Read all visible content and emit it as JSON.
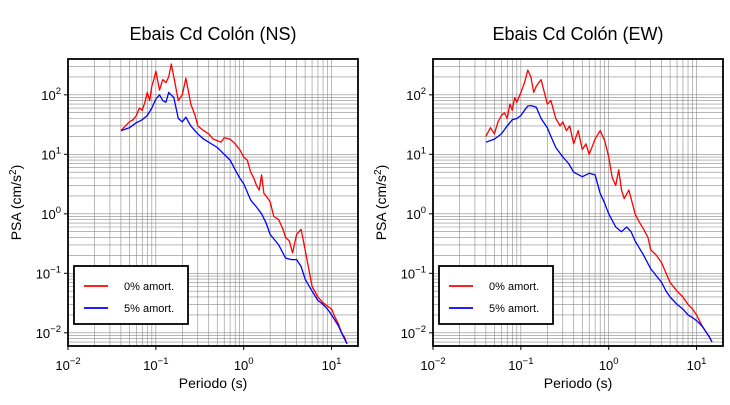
{
  "chart_data": [
    {
      "type": "line",
      "title": "Ebais Cd Colón (NS)",
      "xlabel": "Periodo (s)",
      "ylabel_parts": [
        "PSA (cm/s",
        "2",
        ")"
      ],
      "xscale": "log",
      "yscale": "log",
      "xlim": [
        0.01,
        20
      ],
      "ylim": [
        0.006,
        400
      ],
      "xticks": [
        {
          "value": 0.01,
          "base": "10",
          "exp": "−2"
        },
        {
          "value": 0.1,
          "base": "10",
          "exp": "−1"
        },
        {
          "value": 1,
          "base": "10",
          "exp": "0"
        },
        {
          "value": 10,
          "base": "10",
          "exp": "1"
        }
      ],
      "yticks": [
        {
          "value": 0.01,
          "base": "10",
          "exp": "−2"
        },
        {
          "value": 0.1,
          "base": "10",
          "exp": "−1"
        },
        {
          "value": 1,
          "base": "10",
          "exp": "0"
        },
        {
          "value": 10,
          "base": "10",
          "exp": "1"
        },
        {
          "value": 100,
          "base": "10",
          "exp": "2"
        }
      ],
      "grid": true,
      "legend_position": "bottom-left",
      "series": [
        {
          "name": "0% amort.",
          "color": "#ff0000",
          "x": [
            0.04,
            0.045,
            0.05,
            0.055,
            0.06,
            0.065,
            0.07,
            0.075,
            0.08,
            0.085,
            0.09,
            0.095,
            0.1,
            0.11,
            0.12,
            0.13,
            0.14,
            0.15,
            0.16,
            0.18,
            0.2,
            0.22,
            0.25,
            0.28,
            0.3,
            0.35,
            0.4,
            0.45,
            0.5,
            0.55,
            0.6,
            0.7,
            0.8,
            0.9,
            1.0,
            1.1,
            1.2,
            1.3,
            1.4,
            1.5,
            1.6,
            1.7,
            1.8,
            2.0,
            2.2,
            2.5,
            2.8,
            3.0,
            3.3,
            3.6,
            4.0,
            4.5,
            5.0,
            5.5,
            6.0,
            7.0,
            8.0,
            9.0,
            10,
            11,
            12,
            13,
            14,
            15
          ],
          "y": [
            25,
            30,
            35,
            38,
            45,
            60,
            55,
            75,
            110,
            80,
            140,
            180,
            250,
            120,
            180,
            160,
            200,
            330,
            200,
            80,
            100,
            190,
            70,
            45,
            30,
            25,
            22,
            18,
            17,
            16,
            19,
            18,
            15,
            12,
            9,
            8,
            5,
            4,
            3,
            2.5,
            4.5,
            2.2,
            2.0,
            1.6,
            0.9,
            0.8,
            0.55,
            0.4,
            0.35,
            0.22,
            0.45,
            0.55,
            0.25,
            0.12,
            0.06,
            0.04,
            0.032,
            0.028,
            0.025,
            0.018,
            0.014,
            0.01,
            0.0085,
            0.0065
          ]
        },
        {
          "name": "5% amort.",
          "color": "#0000ff",
          "x": [
            0.04,
            0.05,
            0.06,
            0.07,
            0.08,
            0.09,
            0.1,
            0.11,
            0.12,
            0.13,
            0.14,
            0.16,
            0.18,
            0.2,
            0.22,
            0.25,
            0.3,
            0.35,
            0.4,
            0.5,
            0.6,
            0.7,
            0.8,
            0.9,
            1.0,
            1.2,
            1.4,
            1.6,
            1.8,
            2.0,
            2.5,
            3.0,
            3.5,
            4.0,
            4.5,
            5.0,
            6.0,
            7.0,
            8.0,
            9.0,
            10,
            11,
            12,
            13,
            14,
            15
          ],
          "y": [
            25,
            28,
            34,
            38,
            45,
            60,
            85,
            100,
            80,
            75,
            110,
            90,
            40,
            35,
            42,
            30,
            22,
            18,
            16,
            13,
            10,
            8,
            5.5,
            4,
            3.2,
            1.7,
            1.3,
            1.0,
            0.7,
            0.45,
            0.3,
            0.18,
            0.17,
            0.17,
            0.13,
            0.08,
            0.05,
            0.035,
            0.03,
            0.025,
            0.02,
            0.016,
            0.013,
            0.01,
            0.008,
            0.0065
          ]
        }
      ]
    },
    {
      "type": "line",
      "title": "Ebais Cd Colón (EW)",
      "xlabel": "Periodo (s)",
      "ylabel_parts": [
        "PSA (cm/s",
        "2",
        ")"
      ],
      "xscale": "log",
      "yscale": "log",
      "xlim": [
        0.01,
        20
      ],
      "ylim": [
        0.006,
        400
      ],
      "xticks": [
        {
          "value": 0.01,
          "base": "10",
          "exp": "−2"
        },
        {
          "value": 0.1,
          "base": "10",
          "exp": "−1"
        },
        {
          "value": 1,
          "base": "10",
          "exp": "0"
        },
        {
          "value": 10,
          "base": "10",
          "exp": "1"
        }
      ],
      "yticks": [
        {
          "value": 0.01,
          "base": "10",
          "exp": "−2"
        },
        {
          "value": 0.1,
          "base": "10",
          "exp": "−1"
        },
        {
          "value": 1,
          "base": "10",
          "exp": "0"
        },
        {
          "value": 10,
          "base": "10",
          "exp": "1"
        },
        {
          "value": 100,
          "base": "10",
          "exp": "2"
        }
      ],
      "grid": true,
      "legend_position": "bottom-left",
      "series": [
        {
          "name": "0% amort.",
          "color": "#ff0000",
          "x": [
            0.04,
            0.045,
            0.05,
            0.055,
            0.06,
            0.065,
            0.07,
            0.075,
            0.08,
            0.085,
            0.09,
            0.1,
            0.11,
            0.12,
            0.13,
            0.14,
            0.15,
            0.17,
            0.2,
            0.22,
            0.25,
            0.28,
            0.3,
            0.33,
            0.36,
            0.4,
            0.45,
            0.5,
            0.55,
            0.6,
            0.7,
            0.8,
            0.9,
            1.0,
            1.1,
            1.2,
            1.3,
            1.4,
            1.5,
            1.7,
            2.0,
            2.2,
            2.5,
            2.8,
            3.0,
            3.5,
            4.0,
            4.5,
            5.0,
            6.0,
            7.0,
            8.0,
            9.0,
            10,
            11,
            12,
            13,
            14,
            15
          ],
          "y": [
            20,
            28,
            22,
            35,
            45,
            50,
            40,
            70,
            55,
            90,
            75,
            110,
            160,
            260,
            200,
            110,
            140,
            180,
            70,
            80,
            40,
            30,
            35,
            25,
            30,
            15,
            25,
            12,
            15,
            10,
            18,
            25,
            17,
            9,
            4,
            3,
            5.5,
            2.5,
            1.8,
            2.5,
            1.0,
            0.75,
            0.55,
            0.4,
            0.25,
            0.2,
            0.15,
            0.1,
            0.07,
            0.05,
            0.04,
            0.03,
            0.025,
            0.02,
            0.015,
            0.012,
            0.01,
            0.0085,
            0.007
          ]
        },
        {
          "name": "5% amort.",
          "color": "#0000ff",
          "x": [
            0.04,
            0.05,
            0.06,
            0.07,
            0.08,
            0.09,
            0.1,
            0.11,
            0.12,
            0.13,
            0.14,
            0.15,
            0.17,
            0.2,
            0.22,
            0.25,
            0.3,
            0.35,
            0.4,
            0.5,
            0.6,
            0.7,
            0.8,
            0.9,
            1.0,
            1.2,
            1.4,
            1.6,
            1.8,
            2.0,
            2.5,
            3.0,
            3.5,
            4.0,
            4.5,
            5.0,
            6.0,
            7.0,
            8.0,
            9.0,
            10,
            11,
            12,
            13,
            14,
            15
          ],
          "y": [
            16,
            18,
            22,
            30,
            38,
            40,
            45,
            55,
            65,
            66,
            64,
            62,
            40,
            28,
            20,
            13,
            9,
            7,
            5,
            4.2,
            4.8,
            4.5,
            2.2,
            1.5,
            1.0,
            0.6,
            0.5,
            0.6,
            0.5,
            0.35,
            0.2,
            0.12,
            0.09,
            0.07,
            0.05,
            0.04,
            0.03,
            0.025,
            0.02,
            0.018,
            0.016,
            0.014,
            0.012,
            0.01,
            0.0085,
            0.007
          ]
        }
      ]
    }
  ]
}
